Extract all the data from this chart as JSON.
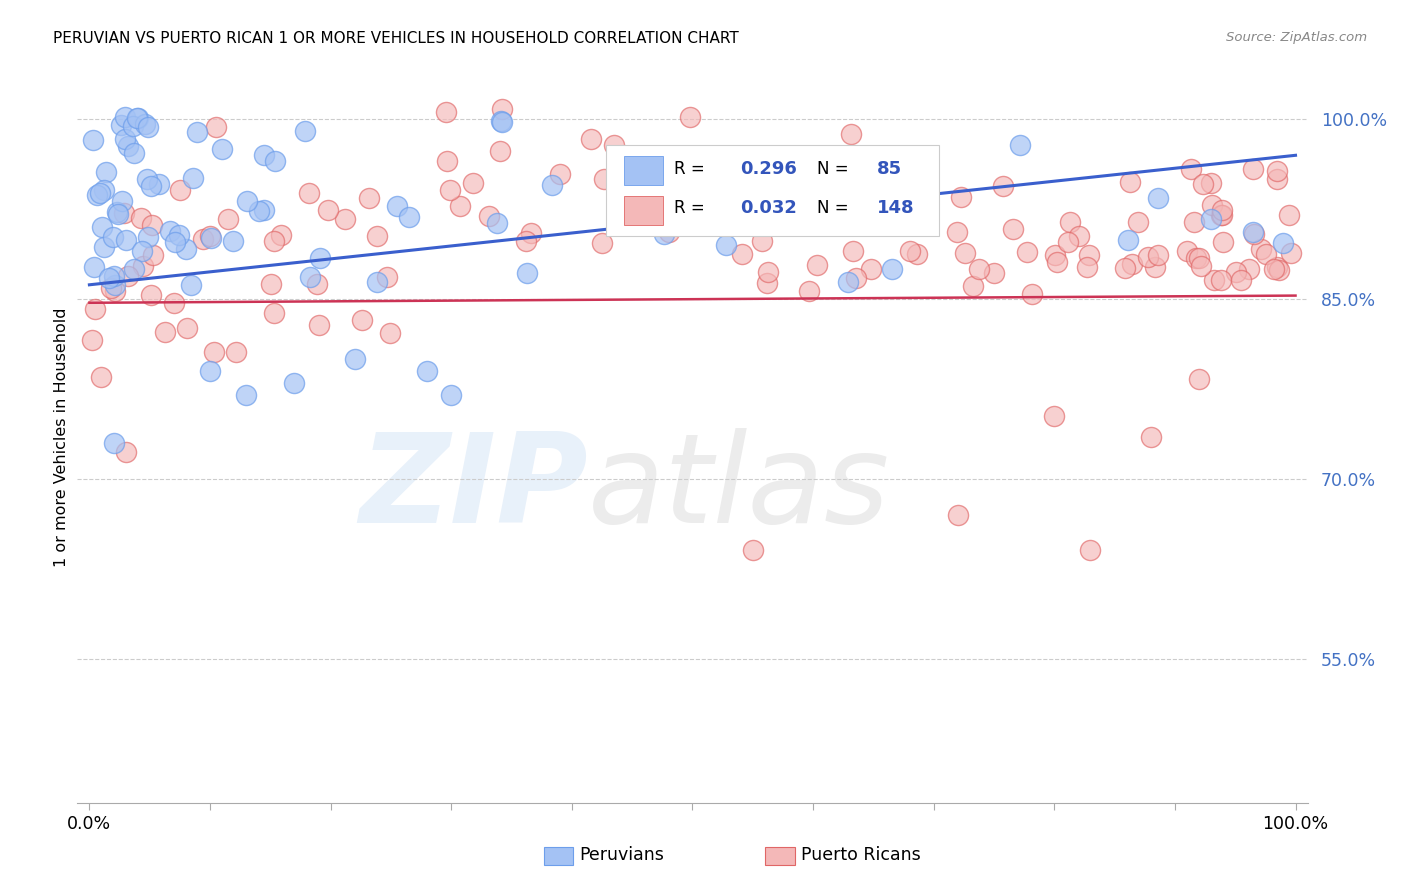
{
  "title": "PERUVIAN VS PUERTO RICAN 1 OR MORE VEHICLES IN HOUSEHOLD CORRELATION CHART",
  "source": "Source: ZipAtlas.com",
  "ylabel": "1 or more Vehicles in Household",
  "ytick_labels": [
    "100.0%",
    "85.0%",
    "70.0%",
    "55.0%"
  ],
  "ytick_values": [
    1.0,
    0.85,
    0.7,
    0.55
  ],
  "xlim": [
    -0.01,
    1.01
  ],
  "ylim": [
    0.43,
    1.04
  ],
  "R_peruvian": 0.296,
  "N_peruvian": 85,
  "R_puerto_rican": 0.032,
  "N_puerto_rican": 148,
  "color_peruvian_face": "#a4c2f4",
  "color_peruvian_edge": "#6d9eeb",
  "color_puerto_rican_face": "#f4b8b8",
  "color_puerto_rican_edge": "#e06666",
  "color_line_peruvian": "#3a5fcd",
  "color_line_puerto_rican": "#cc3355",
  "legend_label_peruvians": "Peruvians",
  "legend_label_puerto_ricans": "Puerto Ricans",
  "trend_peru": [
    0.0,
    0.862,
    1.0,
    0.97
  ],
  "trend_pr": [
    0.0,
    0.847,
    1.0,
    0.853
  ]
}
